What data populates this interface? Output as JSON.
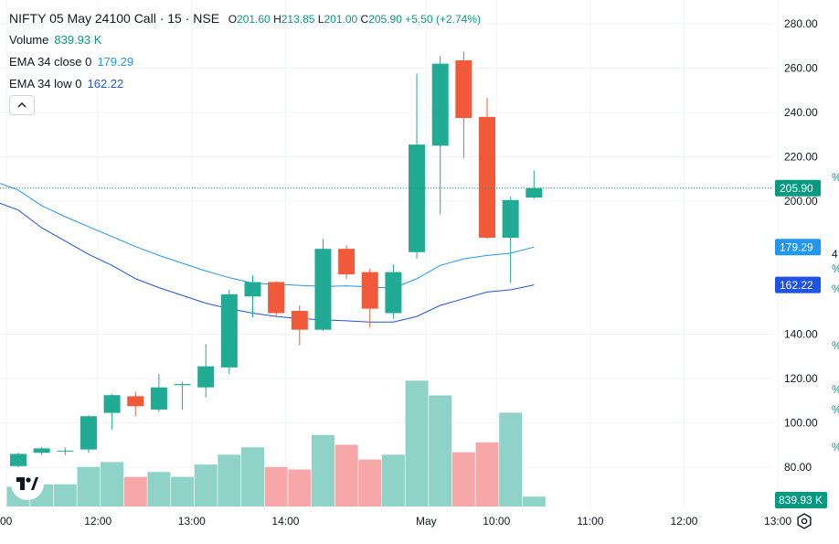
{
  "header": {
    "title": "NIFTY 05 May 24100 Call · 15 · NSE",
    "ohlc": [
      {
        "key": "O",
        "value": "201.60"
      },
      {
        "key": "H",
        "value": "213.85"
      },
      {
        "key": "L",
        "value": "201.00"
      },
      {
        "key": "C",
        "value": "205.90"
      }
    ],
    "change": "+5.50 (+2.74%)"
  },
  "indicators": [
    {
      "label": "Volume",
      "value": "839.93 K"
    },
    {
      "label": "EMA 34 close 0",
      "value": "179.29"
    },
    {
      "label": "EMA 34 low 0",
      "value": "162.22"
    }
  ],
  "colors": {
    "up": "#089981",
    "down": "#f23645",
    "up_candle": "#22ab94",
    "down_candle": "#f05a3a",
    "up_volume": "#8fd3c8",
    "down_volume": "#f7a7a8",
    "ema_close": "#2196f3",
    "ema_low": "#1e53e5",
    "grid": "#f0f3fa",
    "axis_text": "#131722"
  },
  "icons": [
    "chevron-up-icon",
    "tradingview-logo-icon",
    "settings-gear-icon"
  ],
  "chart_data": {
    "type": "candlestick",
    "title": "NIFTY 05 May 24100 Call · 15 · NSE",
    "ylim": [
      72,
      287
    ],
    "y_ticks": [
      80,
      100,
      120,
      140,
      200,
      220,
      240,
      260,
      280
    ],
    "y_tick_labels": [
      "80.00",
      "100.00",
      "120.00",
      "140.00",
      "200.00",
      "220.00",
      "240.00",
      "260.00",
      "280.00"
    ],
    "x_tick_labels": [
      {
        "label": "00",
        "index": -0.5
      },
      {
        "label": "12:00",
        "index": 3.4
      },
      {
        "label": "13:00",
        "index": 7.4
      },
      {
        "label": "14:00",
        "index": 11.4
      },
      {
        "label": "May",
        "index": 17.4
      },
      {
        "label": "10:00",
        "index": 20.4
      },
      {
        "label": "11:00",
        "index": 24.4
      },
      {
        "label": "12:00",
        "index": 28.4
      },
      {
        "label": "13:00",
        "index": 32.4
      }
    ],
    "candles": [
      {
        "o": 80.5,
        "h": 86.5,
        "l": 80.0,
        "c": 86.0
      },
      {
        "o": 86.5,
        "h": 89.0,
        "l": 85.5,
        "c": 88.5
      },
      {
        "o": 87.5,
        "h": 89.0,
        "l": 85.5,
        "c": 87.5
      },
      {
        "o": 88.0,
        "h": 103.5,
        "l": 86.5,
        "c": 103.0
      },
      {
        "o": 104.5,
        "h": 113.0,
        "l": 97.0,
        "c": 112.5
      },
      {
        "o": 112.0,
        "h": 114.0,
        "l": 103.0,
        "c": 107.5
      },
      {
        "o": 106.0,
        "h": 122.0,
        "l": 105.0,
        "c": 116.0
      },
      {
        "o": 117.0,
        "h": 118.5,
        "l": 106.0,
        "c": 117.5
      },
      {
        "o": 116.0,
        "h": 135.5,
        "l": 111.5,
        "c": 125.5
      },
      {
        "o": 125.0,
        "h": 160.0,
        "l": 122.0,
        "c": 158.0
      },
      {
        "o": 157.0,
        "h": 166.5,
        "l": 147.5,
        "c": 163.5
      },
      {
        "o": 163.5,
        "h": 164.0,
        "l": 148.0,
        "c": 149.5
      },
      {
        "o": 150.5,
        "h": 153.0,
        "l": 135.0,
        "c": 142.0
      },
      {
        "o": 142.0,
        "h": 183.0,
        "l": 141.5,
        "c": 178.5
      },
      {
        "o": 178.5,
        "h": 180.0,
        "l": 165.0,
        "c": 167.0
      },
      {
        "o": 168.0,
        "h": 169.5,
        "l": 143.0,
        "c": 151.5
      },
      {
        "o": 149.5,
        "h": 171.5,
        "l": 147.0,
        "c": 168.0
      },
      {
        "o": 177.0,
        "h": 257.5,
        "l": 174.0,
        "c": 225.5
      },
      {
        "o": 225.0,
        "h": 265.5,
        "l": 194.0,
        "c": 262.0
      },
      {
        "o": 263.5,
        "h": 267.5,
        "l": 219.5,
        "c": 237.5
      },
      {
        "o": 238.0,
        "h": 246.5,
        "l": 183.0,
        "c": 183.5
      },
      {
        "o": 183.5,
        "h": 202.0,
        "l": 163.0,
        "c": 200.5
      },
      {
        "o": 201.6,
        "h": 213.85,
        "l": 201.0,
        "c": 205.9
      }
    ],
    "volume": {
      "values": [
        8,
        9,
        9,
        16,
        18,
        12,
        14,
        12,
        17,
        21,
        24,
        16,
        15,
        29,
        25,
        19,
        21,
        51,
        45,
        22,
        26,
        38,
        4
      ],
      "label": "839.93 K"
    },
    "ema_close": [
      205.0,
      198.0,
      193.0,
      188.5,
      184.0,
      179.5,
      175.5,
      172.0,
      168.5,
      165.5,
      163.0,
      162.5,
      162.0,
      161.5,
      161.8,
      161.3,
      160.8,
      165.0,
      171.0,
      174.0,
      175.5,
      176.5,
      179.29
    ],
    "ema_low": [
      196.0,
      188.0,
      182.0,
      176.0,
      171.0,
      165.0,
      161.0,
      157.5,
      154.0,
      151.5,
      149.5,
      148.0,
      147.0,
      146.5,
      146.0,
      145.5,
      145.5,
      148.0,
      153.0,
      156.0,
      159.0,
      160.0,
      162.22
    ],
    "last_price": "205.90",
    "last_price_value": 205.9,
    "ema_close_label": "179.29",
    "ema_low_label": "162.22",
    "right_edge_glyphs": [
      "%",
      "4",
      "%",
      "%",
      "%",
      "%",
      "%",
      "%"
    ]
  }
}
